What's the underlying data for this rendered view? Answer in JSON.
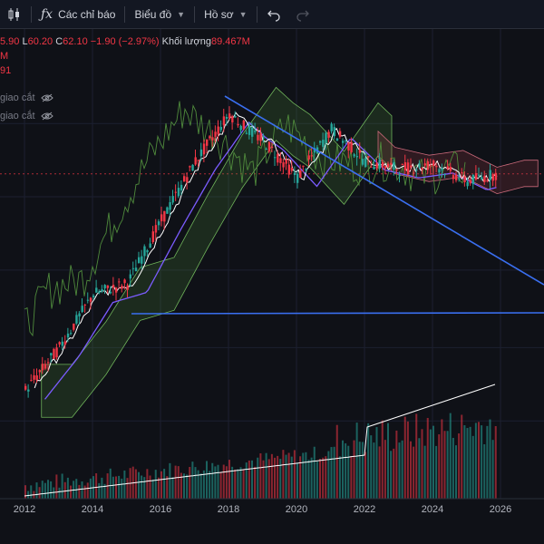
{
  "toolbar": {
    "indicators_label": "Các chỉ báo",
    "chart_label": "Biểu đồ",
    "profile_label": "Hồ sơ"
  },
  "legend": {
    "open_fragment": "5.90",
    "low_label": "L",
    "low_value": "60.20",
    "close_label": "C",
    "close_value": "62.10",
    "change": "−1.90 (−2.97%)",
    "volume_label": "Khối lượng",
    "volume_value": "89.467M",
    "line2": "M",
    "line3": "91",
    "ind1": "giao cắt",
    "ind2": "giao cắt"
  },
  "colors": {
    "background": "#0f1117",
    "up": "#26a69a",
    "down": "#f23645",
    "trendline": "#3a6ff0",
    "tenkan": "#ffffff",
    "kijun": "#7b5cff",
    "lagging": "#4f8a3c"
  },
  "chart_data": {
    "type": "candlestick",
    "x_ticks": [
      "2012",
      "2014",
      "2016",
      "2018",
      "2020",
      "2022",
      "2024",
      "2026"
    ],
    "approx_close": [
      {
        "x": 2012,
        "y": 8
      },
      {
        "x": 2013,
        "y": 12
      },
      {
        "x": 2014,
        "y": 20
      },
      {
        "x": 2015,
        "y": 22
      },
      {
        "x": 2016,
        "y": 40
      },
      {
        "x": 2017,
        "y": 70
      },
      {
        "x": 2018,
        "y": 110
      },
      {
        "x": 2018.5,
        "y": 95
      },
      {
        "x": 2019,
        "y": 85
      },
      {
        "x": 2020,
        "y": 60
      },
      {
        "x": 2021,
        "y": 95
      },
      {
        "x": 2022,
        "y": 70
      },
      {
        "x": 2023,
        "y": 65
      },
      {
        "x": 2024,
        "y": 68
      },
      {
        "x": 2025,
        "y": 58
      },
      {
        "x": 2025.8,
        "y": 62
      }
    ]
  }
}
